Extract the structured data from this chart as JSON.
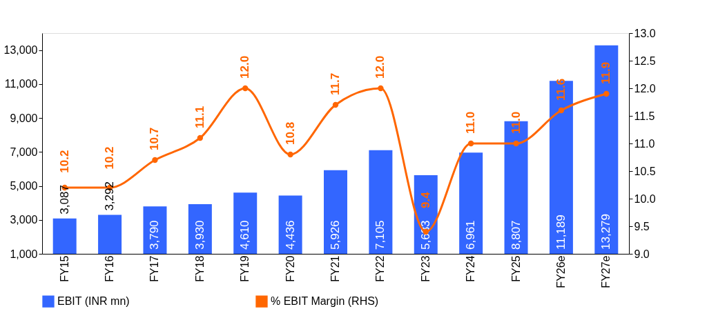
{
  "chart_data": {
    "type": "bar",
    "categories": [
      "FY15",
      "FY16",
      "FY17",
      "FY18",
      "FY19",
      "FY20",
      "FY21",
      "FY22",
      "FY23",
      "FY24",
      "FY25",
      "FY26e",
      "FY27e"
    ],
    "series": [
      {
        "name": "EBIT (INR mn)",
        "color": "#3366ff",
        "values": [
          3087,
          3292,
          3790,
          3930,
          4610,
          4436,
          5926,
          7105,
          5633,
          6961,
          8807,
          11189,
          13279
        ],
        "value_labels": [
          "3,087",
          "3,292",
          "3,790",
          "3,930",
          "4,610",
          "4,436",
          "5,926",
          "7,105",
          "5,633",
          "6,961",
          "8,807",
          "11,189",
          "13,279"
        ]
      },
      {
        "name": "% EBIT Margin (RHS)",
        "color": "#ff6600",
        "type": "line",
        "axis": "y2",
        "values": [
          10.2,
          10.2,
          10.7,
          11.1,
          12.0,
          10.8,
          11.7,
          12.0,
          9.4,
          11.0,
          11.0,
          11.6,
          11.9
        ],
        "value_labels": [
          "10.2",
          "10.2",
          "10.7",
          "11.1",
          "12.0",
          "10.8",
          "11.7",
          "12.0",
          "9.4",
          "11.0",
          "11.0",
          "11.6",
          "11.9"
        ]
      }
    ],
    "ylim": [
      1000,
      14000
    ],
    "yticks": [
      {
        "value": 1000,
        "label": "1,000"
      },
      {
        "value": 3000,
        "label": "3,000"
      },
      {
        "value": 5000,
        "label": "5,000"
      },
      {
        "value": 7000,
        "label": "7,000"
      },
      {
        "value": 9000,
        "label": "9,000"
      },
      {
        "value": 11000,
        "label": "11,000"
      },
      {
        "value": 13000,
        "label": "13,000"
      }
    ],
    "y2lim": [
      9.0,
      13.0
    ],
    "y2ticks": [
      {
        "value": 9.0,
        "label": "9.0"
      },
      {
        "value": 9.5,
        "label": "9.5"
      },
      {
        "value": 10.0,
        "label": "10.0"
      },
      {
        "value": 10.5,
        "label": "10.5"
      },
      {
        "value": 11.0,
        "label": "11.0"
      },
      {
        "value": 11.5,
        "label": "11.5"
      },
      {
        "value": 12.0,
        "label": "12.0"
      },
      {
        "value": 12.5,
        "label": "12.5"
      },
      {
        "value": 13.0,
        "label": "13.0"
      }
    ],
    "legend": "bottom",
    "grid": false,
    "marker": "circle",
    "line_style": "solid"
  }
}
